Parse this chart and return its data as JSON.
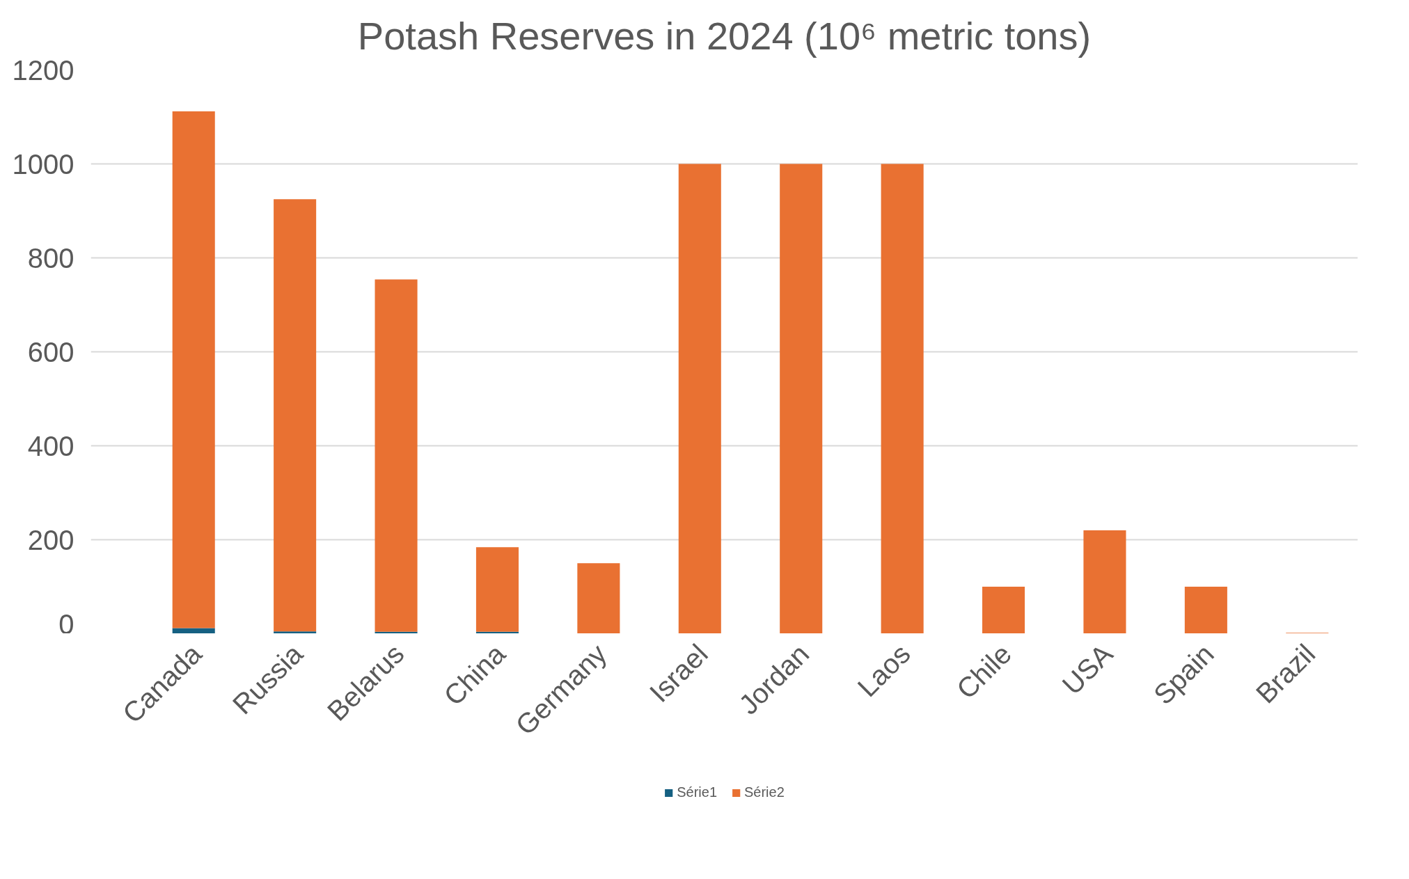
{
  "chart_data": {
    "type": "bar",
    "title": "Potash Reserves in 2024 (10⁶ metric tons)",
    "categories": [
      "Canada",
      "Russia",
      "Belarus",
      "China",
      "Germany",
      "Israel",
      "Jordan",
      "Laos",
      "Chile",
      "USA",
      "Spain",
      "Brazil"
    ],
    "series": [
      {
        "name": "Série1",
        "color": "#156082",
        "values": [
          12,
          5,
          4,
          4,
          null,
          null,
          null,
          null,
          null,
          null,
          null,
          null
        ]
      },
      {
        "name": "Série2",
        "color": "#e97132",
        "values": [
          1100,
          920,
          750,
          180,
          150,
          1000,
          1000,
          1000,
          100,
          220,
          100,
          2
        ]
      }
    ],
    "stacked": true,
    "ylim": [
      0,
      1200
    ],
    "yticks": [
      0,
      200,
      400,
      600,
      800,
      1000,
      1200
    ],
    "grid": "y",
    "legend": "bottom"
  }
}
